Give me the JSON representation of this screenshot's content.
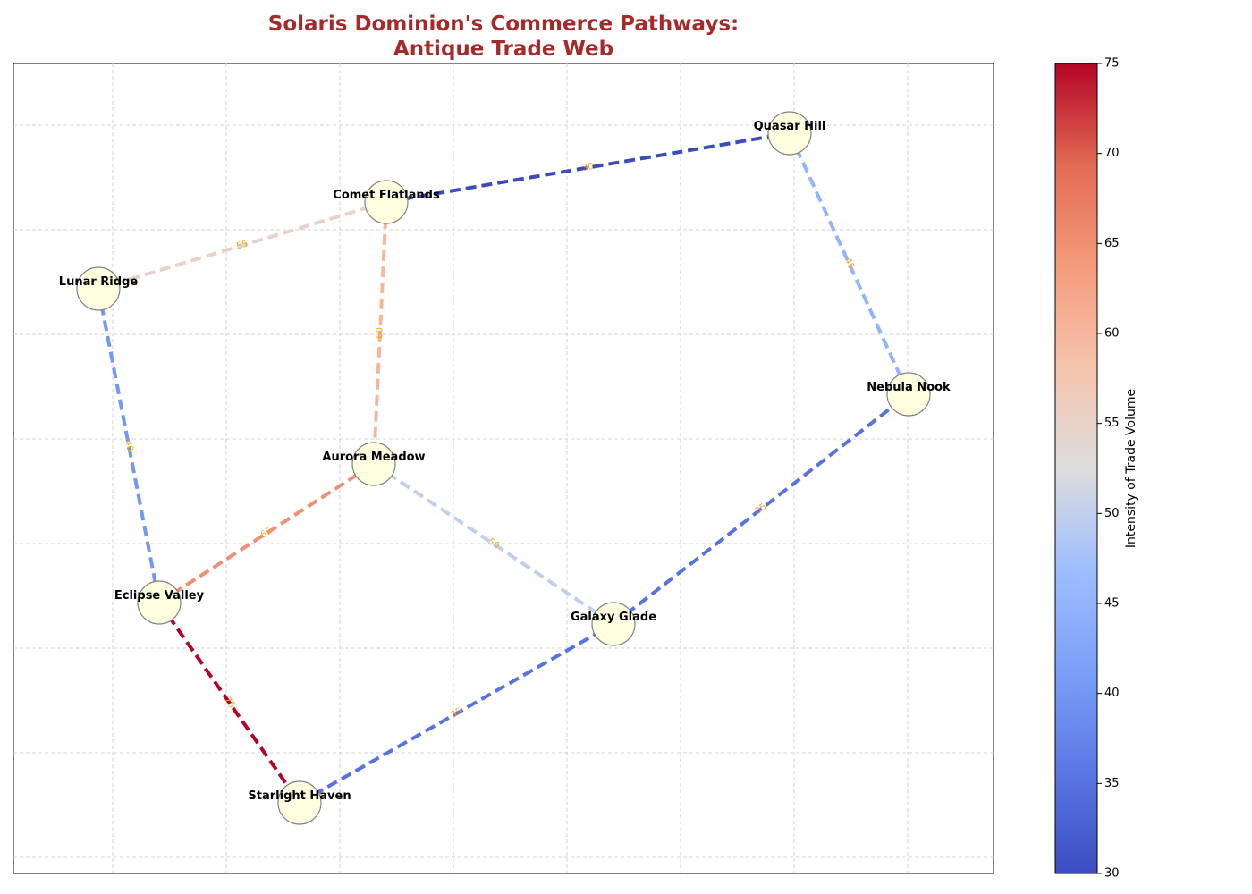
{
  "title": {
    "line1": "Solaris Dominion's Commerce Pathways:",
    "line2": "Antique Trade Web"
  },
  "colors": {
    "title": "#a52a2a",
    "node_fill": "#ffffe0",
    "node_stroke": "#808080",
    "edge_label": "#f5a623",
    "grid": "#d3d3d3",
    "colormap": "coolwarm"
  },
  "colorbar": {
    "label": "Intensity of Trade Volume",
    "min": 30,
    "max": 75,
    "ticks": [
      "30",
      "35",
      "40",
      "45",
      "50",
      "55",
      "60",
      "65",
      "70",
      "75"
    ]
  },
  "chart_data": {
    "type": "network",
    "grid": true,
    "edge_style": "dashed",
    "nodes": [
      {
        "id": "quasar",
        "name": "Quasar Hill"
      },
      {
        "id": "comet",
        "name": "Comet Flatlands"
      },
      {
        "id": "lunar",
        "name": "Lunar Ridge"
      },
      {
        "id": "nebula",
        "name": "Nebula Nook"
      },
      {
        "id": "aurora",
        "name": "Aurora Meadow"
      },
      {
        "id": "eclipse",
        "name": "Eclipse Valley"
      },
      {
        "id": "galaxy",
        "name": "Galaxy Glade"
      },
      {
        "id": "starlight",
        "name": "Starlight Haven"
      }
    ],
    "edges": [
      {
        "source": "comet",
        "target": "quasar",
        "volume": 30,
        "label": "30"
      },
      {
        "source": "quasar",
        "target": "nebula",
        "volume": 45,
        "label": "45"
      },
      {
        "source": "lunar",
        "target": "comet",
        "volume": 55,
        "label": "55"
      },
      {
        "source": "comet",
        "target": "aurora",
        "volume": 60,
        "label": "60"
      },
      {
        "source": "lunar",
        "target": "eclipse",
        "volume": 40,
        "label": "40"
      },
      {
        "source": "eclipse",
        "target": "aurora",
        "volume": 65,
        "label": "65"
      },
      {
        "source": "aurora",
        "target": "galaxy",
        "volume": 50,
        "label": "50"
      },
      {
        "source": "galaxy",
        "target": "nebula",
        "volume": 35,
        "label": "35"
      },
      {
        "source": "eclipse",
        "target": "starlight",
        "volume": 75,
        "label": "75"
      },
      {
        "source": "starlight",
        "target": "galaxy",
        "volume": 35,
        "label": "35"
      }
    ]
  }
}
